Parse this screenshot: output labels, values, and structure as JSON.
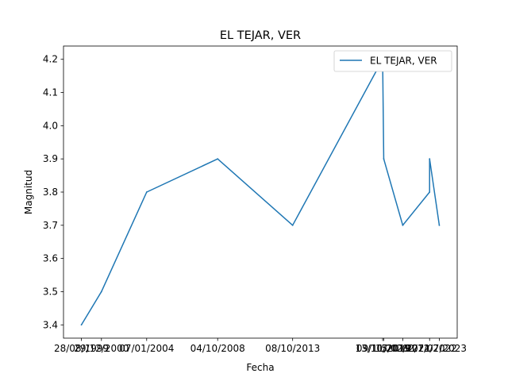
{
  "chart_data": {
    "type": "line",
    "title": "EL TEJAR, VER",
    "xlabel": "Fecha",
    "ylabel": "Magnitud",
    "x": [
      "28/08/1999",
      "29/12/2000",
      "07/01/2004",
      "04/10/2008",
      "08/10/2013",
      "13/10/2019",
      "09/11/2019",
      "15/02/2021",
      "02/12/2022",
      "02/12/2022",
      "27/07/2023"
    ],
    "series": [
      {
        "name": "EL TEJAR, VER",
        "values": [
          3.4,
          3.5,
          3.8,
          3.9,
          3.7,
          4.2,
          3.9,
          3.7,
          3.8,
          3.9,
          3.7
        ],
        "color": "#1f77b4"
      }
    ],
    "xticks": [
      "28/08/1999",
      "29/12/2000",
      "07/01/2004",
      "04/10/2008",
      "08/10/2013",
      "13/10/2019",
      "09/11/2019",
      "15/02/2021",
      "02/12/2022",
      "27/07/2023"
    ],
    "yticks": [
      "3.4",
      "3.5",
      "3.6",
      "3.7",
      "3.8",
      "3.9",
      "4.0",
      "4.1",
      "4.2"
    ],
    "ylim": [
      3.36,
      4.24
    ],
    "grid": false,
    "legend_position": "top-right"
  }
}
